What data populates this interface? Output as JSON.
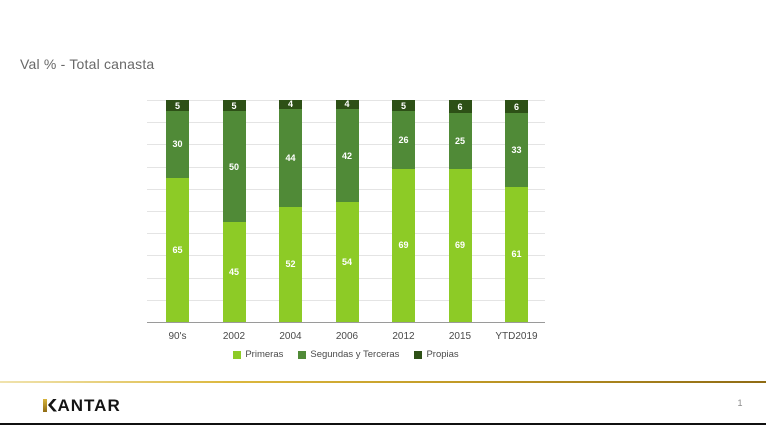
{
  "slide": {
    "title": "Val % - Total canasta",
    "logo_text": "KANTAR",
    "page_number": "1"
  },
  "chart_data": {
    "type": "bar",
    "stacked": true,
    "title": "Val % - Total canasta",
    "categories": [
      "90's",
      "2002",
      "2004",
      "2006",
      "2012",
      "2015",
      "YTD2019"
    ],
    "series": [
      {
        "name": "Primeras",
        "color": "#8dcb26",
        "values": [
          65,
          45,
          52,
          54,
          69,
          69,
          61
        ]
      },
      {
        "name": "Segundas y Terceras",
        "color": "#508a37",
        "values": [
          30,
          50,
          44,
          42,
          26,
          25,
          33
        ]
      },
      {
        "name": "Propias",
        "color": "#2d5016",
        "values": [
          5,
          5,
          4,
          4,
          5,
          6,
          6
        ]
      }
    ],
    "ylim": [
      0,
      100
    ],
    "grid": true,
    "gridline_step": 10,
    "value_labels": true,
    "legend_position": "bottom",
    "colors": {
      "gridline": "#e4e4e4",
      "axis_line": "#9a9a9a",
      "value_label_text": "#ffffff",
      "axis_label_text": "#4a4a4a",
      "gold_divider": "#c19a26",
      "bottom_border": "#101010"
    }
  }
}
